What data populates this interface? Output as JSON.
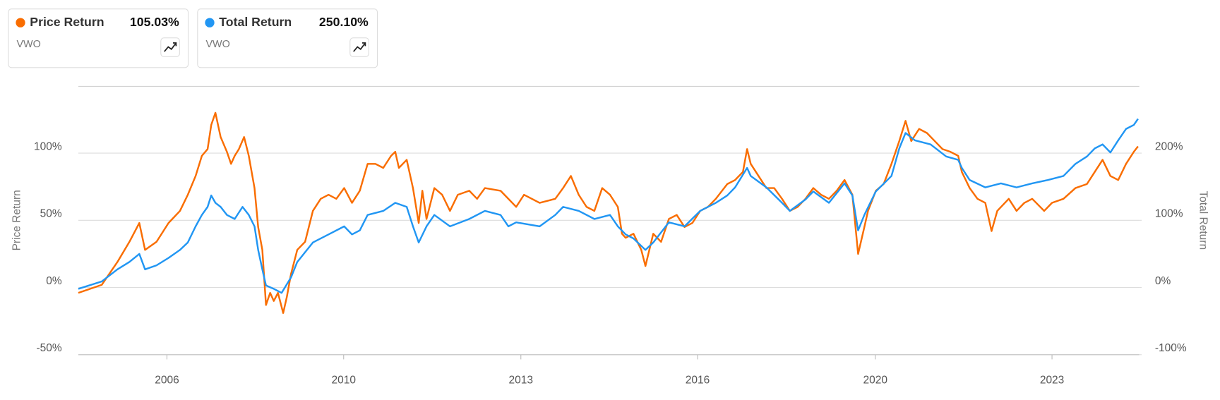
{
  "chart_data": {
    "type": "line",
    "y_label": "Price Return",
    "y2_label": "Total Return",
    "xlim": [
      2005.0,
      2025.355
    ],
    "xticks": [
      {
        "value": 2006.7,
        "label": "2006"
      },
      {
        "value": 2010.09,
        "label": "2010"
      },
      {
        "value": 2013.49,
        "label": "2013"
      },
      {
        "value": 2016.88,
        "label": "2016"
      },
      {
        "value": 2020.29,
        "label": "2020"
      },
      {
        "value": 2023.68,
        "label": "2023"
      }
    ],
    "ylim": [
      -50,
      150
    ],
    "yticks": [
      {
        "value": -50,
        "label": "-50%"
      },
      {
        "value": 0,
        "label": "0%"
      },
      {
        "value": 50,
        "label": "50%"
      },
      {
        "value": 100,
        "label": "100%"
      }
    ],
    "y2lim": [
      -100,
      300
    ],
    "y2ticks": [
      {
        "value": -100,
        "label": "-100%"
      },
      {
        "value": 0,
        "label": "0%"
      },
      {
        "value": 100,
        "label": "100%"
      },
      {
        "value": 200,
        "label": "200%"
      }
    ],
    "grid": true,
    "series": [
      {
        "name": "Price Return",
        "color": "#f96d00",
        "ticker": "VWO",
        "summary_label": "105.03%",
        "x": [
          2005.0,
          2005.45,
          2005.75,
          2005.98,
          2006.17,
          2006.28,
          2006.5,
          2006.73,
          2006.95,
          2007.1,
          2007.25,
          2007.37,
          2007.48,
          2007.55,
          2007.63,
          2007.73,
          2007.85,
          2007.93,
          2008.0,
          2008.08,
          2008.18,
          2008.27,
          2008.38,
          2008.45,
          2008.53,
          2008.6,
          2008.68,
          2008.75,
          2008.83,
          2008.93,
          2009.0,
          2009.08,
          2009.2,
          2009.35,
          2009.5,
          2009.65,
          2009.8,
          2009.95,
          2010.1,
          2010.25,
          2010.4,
          2010.55,
          2010.7,
          2010.85,
          2011.0,
          2011.08,
          2011.15,
          2011.3,
          2011.42,
          2011.53,
          2011.6,
          2011.68,
          2011.83,
          2011.98,
          2012.13,
          2012.28,
          2012.5,
          2012.65,
          2012.8,
          2013.1,
          2013.4,
          2013.55,
          2013.85,
          2014.15,
          2014.3,
          2014.45,
          2014.6,
          2014.75,
          2014.9,
          2015.05,
          2015.2,
          2015.35,
          2015.43,
          2015.5,
          2015.65,
          2015.8,
          2015.88,
          2016.03,
          2016.18,
          2016.33,
          2016.48,
          2016.63,
          2016.78,
          2016.93,
          2017.08,
          2017.23,
          2017.45,
          2017.6,
          2017.75,
          2017.83,
          2017.9,
          2018.05,
          2018.2,
          2018.35,
          2018.5,
          2018.65,
          2018.8,
          2018.95,
          2019.1,
          2019.25,
          2019.4,
          2019.55,
          2019.7,
          2019.85,
          2019.96,
          2020.08,
          2020.15,
          2020.3,
          2020.45,
          2020.6,
          2020.75,
          2020.87,
          2020.98,
          2021.13,
          2021.28,
          2021.43,
          2021.58,
          2021.73,
          2021.88,
          2021.95,
          2022.1,
          2022.25,
          2022.4,
          2022.52,
          2022.63,
          2022.85,
          2023.0,
          2023.15,
          2023.3,
          2023.53,
          2023.68,
          2023.9,
          2024.13,
          2024.35,
          2024.5,
          2024.65,
          2024.8,
          2024.95,
          2025.1,
          2025.25,
          2025.33
        ],
        "values": [
          -4,
          2,
          19,
          34,
          48,
          28,
          34,
          48,
          57,
          69,
          83,
          98,
          103,
          121,
          130,
          112,
          101,
          92,
          98,
          103,
          112,
          98,
          74,
          45,
          28,
          -13,
          -4,
          -10,
          -4,
          -19,
          -7,
          10,
          28,
          34,
          57,
          66,
          69,
          66,
          74,
          63,
          72,
          92,
          92,
          89,
          98,
          101,
          89,
          95,
          74,
          48,
          72,
          51,
          74,
          69,
          57,
          69,
          72,
          66,
          74,
          72,
          60,
          69,
          63,
          66,
          74,
          83,
          69,
          60,
          57,
          74,
          69,
          60,
          40,
          37,
          40,
          28,
          16,
          40,
          34,
          51,
          54,
          45,
          48,
          57,
          60,
          66,
          77,
          80,
          86,
          103,
          92,
          83,
          74,
          74,
          66,
          57,
          60,
          66,
          74,
          69,
          66,
          72,
          80,
          69,
          25,
          45,
          57,
          72,
          77,
          92,
          109,
          124,
          109,
          118,
          115,
          109,
          103,
          101,
          98,
          86,
          74,
          66,
          63,
          42,
          57,
          66,
          57,
          63,
          66,
          57,
          63,
          66,
          74,
          77,
          86,
          95,
          83,
          80,
          92,
          101,
          105
        ]
      },
      {
        "name": "Total Return",
        "color": "#2196f3",
        "ticker": "VWO",
        "summary_label": "250.10%",
        "axis": "y2",
        "x": [
          2005.0,
          2005.45,
          2005.75,
          2005.98,
          2006.17,
          2006.28,
          2006.5,
          2006.73,
          2006.95,
          2007.1,
          2007.25,
          2007.37,
          2007.48,
          2007.55,
          2007.63,
          2007.73,
          2007.85,
          2008.0,
          2008.15,
          2008.27,
          2008.38,
          2008.45,
          2008.53,
          2008.6,
          2008.75,
          2008.9,
          2009.08,
          2009.2,
          2009.5,
          2009.8,
          2010.1,
          2010.25,
          2010.4,
          2010.55,
          2010.85,
          2011.08,
          2011.3,
          2011.42,
          2011.53,
          2011.68,
          2011.83,
          2012.13,
          2012.5,
          2012.8,
          2013.1,
          2013.25,
          2013.4,
          2013.85,
          2014.15,
          2014.3,
          2014.6,
          2014.9,
          2015.2,
          2015.35,
          2015.5,
          2015.65,
          2015.88,
          2016.03,
          2016.33,
          2016.63,
          2016.93,
          2017.23,
          2017.45,
          2017.6,
          2017.83,
          2017.9,
          2018.2,
          2018.5,
          2018.65,
          2018.95,
          2019.1,
          2019.4,
          2019.7,
          2019.85,
          2019.96,
          2020.08,
          2020.3,
          2020.6,
          2020.75,
          2020.87,
          2021.05,
          2021.35,
          2021.65,
          2021.88,
          2021.95,
          2022.1,
          2022.4,
          2022.7,
          2023.0,
          2023.3,
          2023.6,
          2023.9,
          2024.13,
          2024.35,
          2024.5,
          2024.65,
          2024.8,
          2024.95,
          2025.1,
          2025.25,
          2025.33
        ],
        "values": [
          -2,
          9,
          27,
          38,
          50,
          27,
          33,
          44,
          56,
          67,
          91,
          108,
          120,
          137,
          126,
          120,
          108,
          102,
          120,
          108,
          91,
          56,
          27,
          3,
          -2,
          -8,
          15,
          38,
          67,
          79,
          91,
          79,
          85,
          108,
          114,
          126,
          120,
          91,
          67,
          91,
          108,
          91,
          102,
          114,
          108,
          91,
          97,
          91,
          108,
          120,
          114,
          102,
          108,
          91,
          79,
          73,
          56,
          67,
          97,
          91,
          114,
          126,
          137,
          149,
          178,
          166,
          149,
          126,
          114,
          131,
          143,
          126,
          155,
          137,
          85,
          108,
          143,
          166,
          207,
          230,
          219,
          213,
          195,
          190,
          178,
          160,
          149,
          155,
          149,
          155,
          160,
          166,
          184,
          195,
          207,
          213,
          201,
          219,
          236,
          242,
          251
        ]
      }
    ]
  }
}
